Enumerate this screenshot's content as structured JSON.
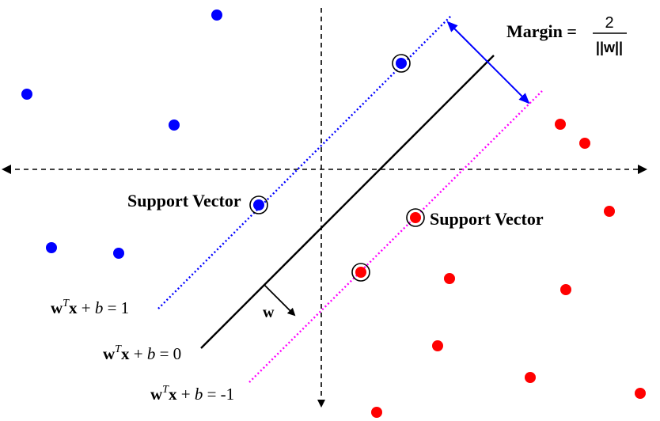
{
  "margin": {
    "label": "Margin =",
    "numerator": "2",
    "denominator": "||w||"
  },
  "support_vector_labels": {
    "left": "Support Vector",
    "right": "Support Vector"
  },
  "weight_vector_label": "w",
  "equations": {
    "positive": {
      "lhs": "w",
      "sup": "T",
      "x": "x",
      "plus": " + ",
      "b": "b",
      "rhs": " = 1"
    },
    "decision": {
      "lhs": "w",
      "sup": "T",
      "x": "x",
      "plus": " + ",
      "b": "b",
      "rhs": " = 0"
    },
    "negative": {
      "lhs": "w",
      "sup": "T",
      "x": "x",
      "plus": " + ",
      "b": "b",
      "rhs": " = -1"
    }
  },
  "colors": {
    "positive_class": "#0000ff",
    "negative_class": "#ff0000",
    "positive_margin_line": "#0000ff",
    "negative_margin_line": "#ff00ff",
    "decision_boundary": "#000000",
    "axes": "#000000",
    "margin_arrow": "#0000ff"
  },
  "icons": {
    "support_vector_marker": "circled-dot",
    "weight_vector": "arrow"
  }
}
